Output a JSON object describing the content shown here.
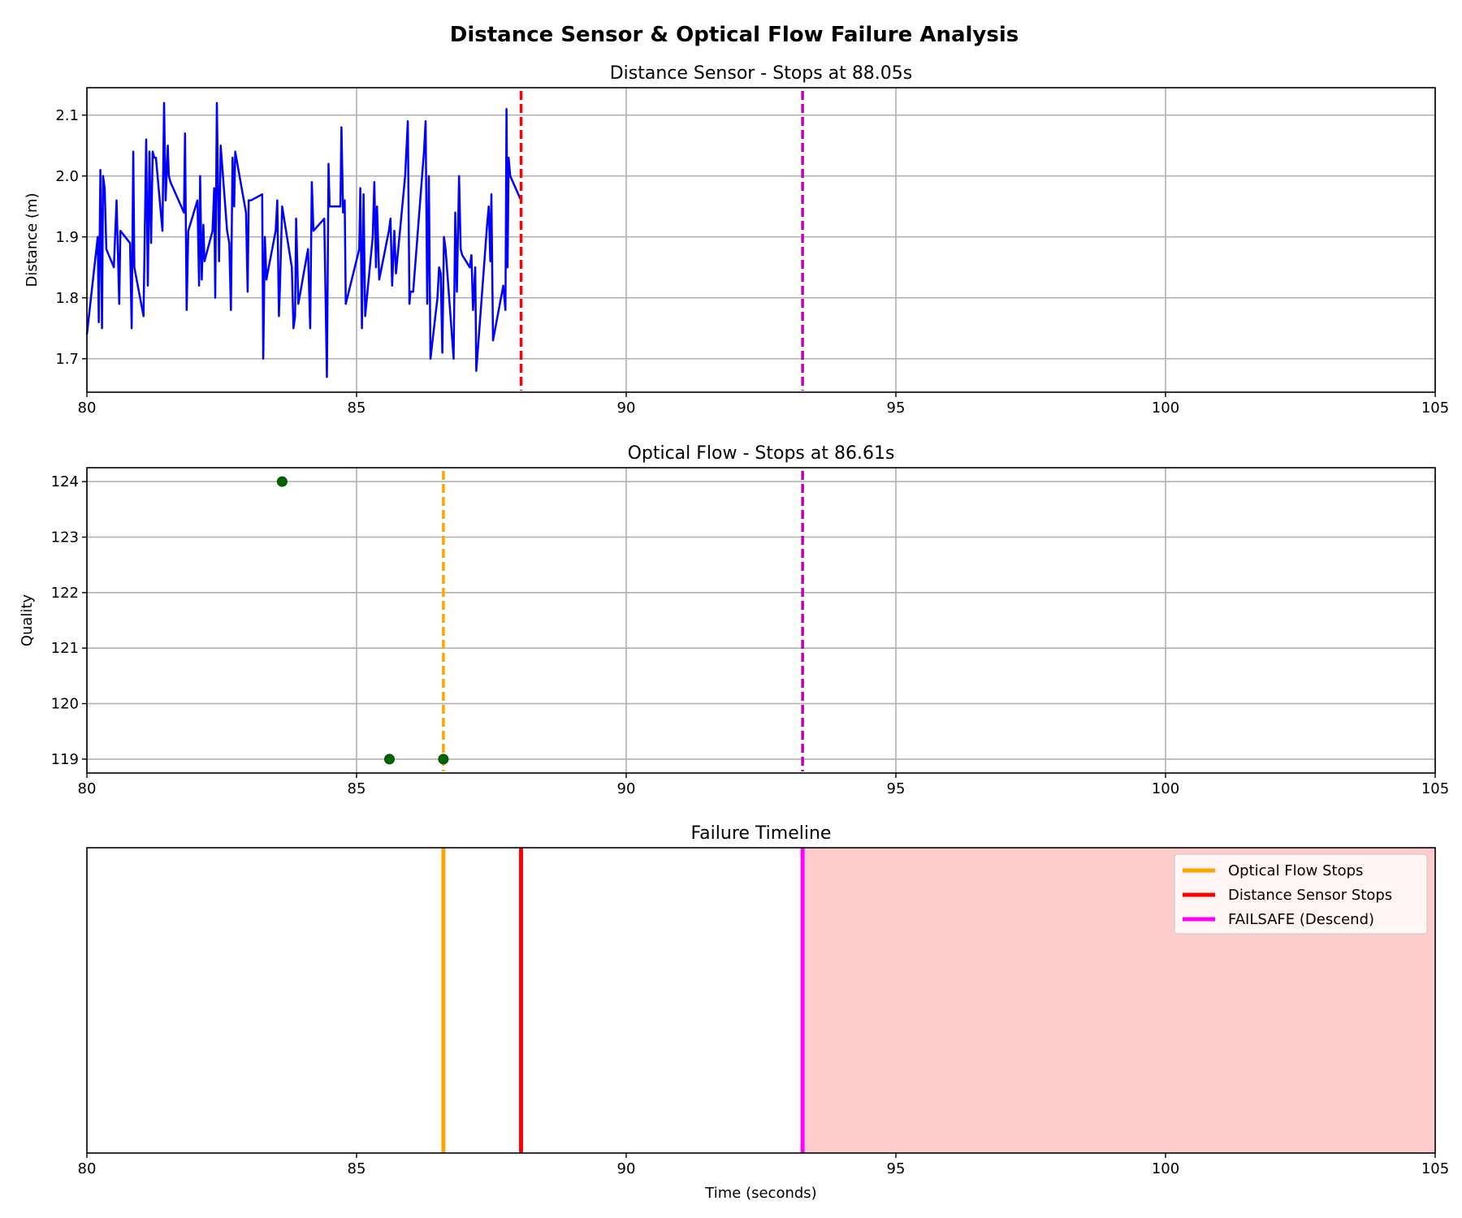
{
  "figure": {
    "title": "Distance Sensor & Optical Flow Failure Analysis"
  },
  "colors": {
    "distance_line": "#0000ff",
    "flow_points": "#006400",
    "optical_flow_stop": "#ffa500",
    "distance_stop": "#ff0000",
    "failsafe": "#ff00ff",
    "failsafe_dashed": "#bf00bf",
    "failsafe_region": "#ffcccc",
    "grid": "#b0b0b0"
  },
  "chart_data": [
    {
      "type": "line",
      "title": "Distance Sensor - Stops at 88.05s",
      "xlabel": "",
      "ylabel": "Distance (m)",
      "xlim": [
        80,
        105
      ],
      "ylim": [
        1.645,
        2.145
      ],
      "xticks": [
        80,
        85,
        90,
        95,
        100,
        105
      ],
      "yticks": [
        1.7,
        1.8,
        1.9,
        2.0,
        2.1
      ],
      "ytick_labels": [
        "1.7",
        "1.8",
        "1.9",
        "2.0",
        "2.1"
      ],
      "grid": true,
      "series": [
        {
          "x": [
            80.0,
            80.2,
            80.22,
            80.25,
            80.28,
            80.3,
            80.33,
            80.36,
            80.5,
            80.55,
            80.6,
            80.62,
            80.8,
            80.83,
            80.86,
            80.88,
            80.9,
            81.05,
            81.1,
            81.13,
            81.16,
            81.19,
            81.22,
            81.25,
            81.28,
            81.4,
            81.43,
            81.46,
            81.5,
            81.52,
            81.55,
            81.8,
            81.82,
            81.85,
            81.88,
            82.05,
            82.08,
            82.1,
            82.13,
            82.16,
            82.18,
            82.33,
            82.36,
            82.38,
            82.41,
            82.45,
            82.48,
            82.6,
            82.64,
            82.67,
            82.7,
            82.73,
            82.75,
            82.95,
            82.98,
            83.0,
            83.04,
            83.25,
            83.27,
            83.3,
            83.33,
            83.35,
            83.5,
            83.53,
            83.56,
            83.58,
            83.62,
            83.8,
            83.83,
            83.86,
            83.88,
            83.92,
            84.1,
            84.14,
            84.17,
            84.2,
            84.4,
            84.45,
            84.48,
            84.5,
            84.7,
            84.72,
            84.75,
            84.78,
            84.8,
            85.05,
            85.07,
            85.1,
            85.13,
            85.16,
            85.3,
            85.33,
            85.36,
            85.38,
            85.42,
            85.6,
            85.63,
            85.66,
            85.7,
            85.73,
            85.9,
            85.95,
            85.98,
            86.0,
            86.05,
            86.25,
            86.28,
            86.31,
            86.34,
            86.37,
            86.5,
            86.53,
            86.56,
            86.59,
            86.62,
            86.65,
            86.8,
            86.83,
            86.86,
            86.9,
            86.93,
            86.96,
            87.1,
            87.13,
            87.16,
            87.2,
            87.22,
            87.42,
            87.45,
            87.48,
            87.5,
            87.53,
            87.72,
            87.76,
            87.78,
            87.8,
            87.82,
            87.85,
            88.05
          ],
          "y": [
            1.74,
            1.9,
            1.76,
            2.01,
            1.75,
            2.0,
            1.98,
            1.88,
            1.85,
            1.96,
            1.79,
            1.91,
            1.89,
            1.75,
            2.04,
            1.85,
            1.84,
            1.77,
            2.06,
            1.82,
            2.04,
            1.89,
            2.04,
            2.03,
            2.03,
            1.91,
            2.12,
            1.96,
            2.05,
            2.0,
            1.99,
            1.94,
            2.07,
            1.78,
            1.91,
            1.96,
            1.82,
            2.0,
            1.83,
            1.92,
            1.86,
            1.91,
            1.98,
            1.8,
            2.12,
            1.86,
            2.05,
            1.91,
            1.89,
            1.78,
            2.03,
            1.95,
            2.04,
            1.94,
            1.81,
            1.96,
            1.96,
            1.97,
            1.7,
            1.9,
            1.83,
            1.84,
            1.91,
            1.96,
            1.77,
            1.82,
            1.95,
            1.85,
            1.75,
            1.77,
            1.93,
            1.79,
            1.88,
            1.75,
            1.99,
            1.91,
            1.93,
            1.67,
            2.02,
            1.95,
            1.95,
            2.08,
            1.94,
            1.96,
            1.79,
            1.88,
            1.98,
            1.75,
            1.97,
            1.77,
            1.9,
            1.99,
            1.85,
            1.95,
            1.83,
            1.91,
            1.93,
            1.82,
            1.91,
            1.84,
            2.0,
            2.09,
            1.79,
            1.81,
            1.81,
            2.04,
            2.09,
            1.79,
            2.0,
            1.7,
            1.8,
            1.85,
            1.84,
            1.71,
            1.9,
            1.88,
            1.7,
            1.94,
            1.81,
            2.0,
            1.88,
            1.87,
            1.85,
            1.87,
            1.78,
            1.85,
            1.68,
            1.92,
            1.95,
            1.86,
            1.97,
            1.73,
            1.82,
            1.78,
            2.11,
            1.85,
            2.03,
            2.0,
            1.96
          ]
        }
      ],
      "vlines": [
        {
          "x": 88.05,
          "color_key": "distance_stop",
          "style": "dashed"
        },
        {
          "x": 93.27,
          "color_key": "failsafe_dashed",
          "style": "dashed"
        }
      ]
    },
    {
      "type": "scatter",
      "title": "Optical Flow - Stops at 86.61s",
      "xlabel": "",
      "ylabel": "Quality",
      "xlim": [
        80,
        105
      ],
      "ylim": [
        118.75,
        124.25
      ],
      "xticks": [
        80,
        85,
        90,
        95,
        100,
        105
      ],
      "yticks": [
        119,
        120,
        121,
        122,
        123,
        124
      ],
      "ytick_labels": [
        "119",
        "120",
        "121",
        "122",
        "123",
        "124"
      ],
      "grid": true,
      "series": [
        {
          "x": [
            83.62,
            85.61,
            86.61
          ],
          "y": [
            124,
            119,
            119
          ]
        }
      ],
      "vlines": [
        {
          "x": 86.61,
          "color_key": "optical_flow_stop",
          "style": "dashed"
        },
        {
          "x": 93.27,
          "color_key": "failsafe_dashed",
          "style": "dashed"
        }
      ]
    },
    {
      "type": "timeline",
      "title": "Failure Timeline",
      "xlabel": "Time (seconds)",
      "ylabel": "",
      "xlim": [
        80,
        105
      ],
      "xticks": [
        80,
        85,
        90,
        95,
        100,
        105
      ],
      "grid": false,
      "shaded_region": {
        "x_start": 93.27,
        "x_end": 105,
        "color_key": "failsafe_region"
      },
      "vlines": [
        {
          "x": 86.61,
          "color_key": "optical_flow_stop",
          "style": "solid"
        },
        {
          "x": 88.05,
          "color_key": "distance_stop",
          "style": "solid"
        },
        {
          "x": 93.27,
          "color_key": "failsafe",
          "style": "solid"
        }
      ],
      "legend": {
        "placement": "upper right",
        "entries": [
          {
            "label": "Optical Flow Stops",
            "color_key": "optical_flow_stop"
          },
          {
            "label": "Distance Sensor Stops",
            "color_key": "distance_stop"
          },
          {
            "label": "FAILSAFE (Descend)",
            "color_key": "failsafe"
          }
        ]
      }
    }
  ]
}
